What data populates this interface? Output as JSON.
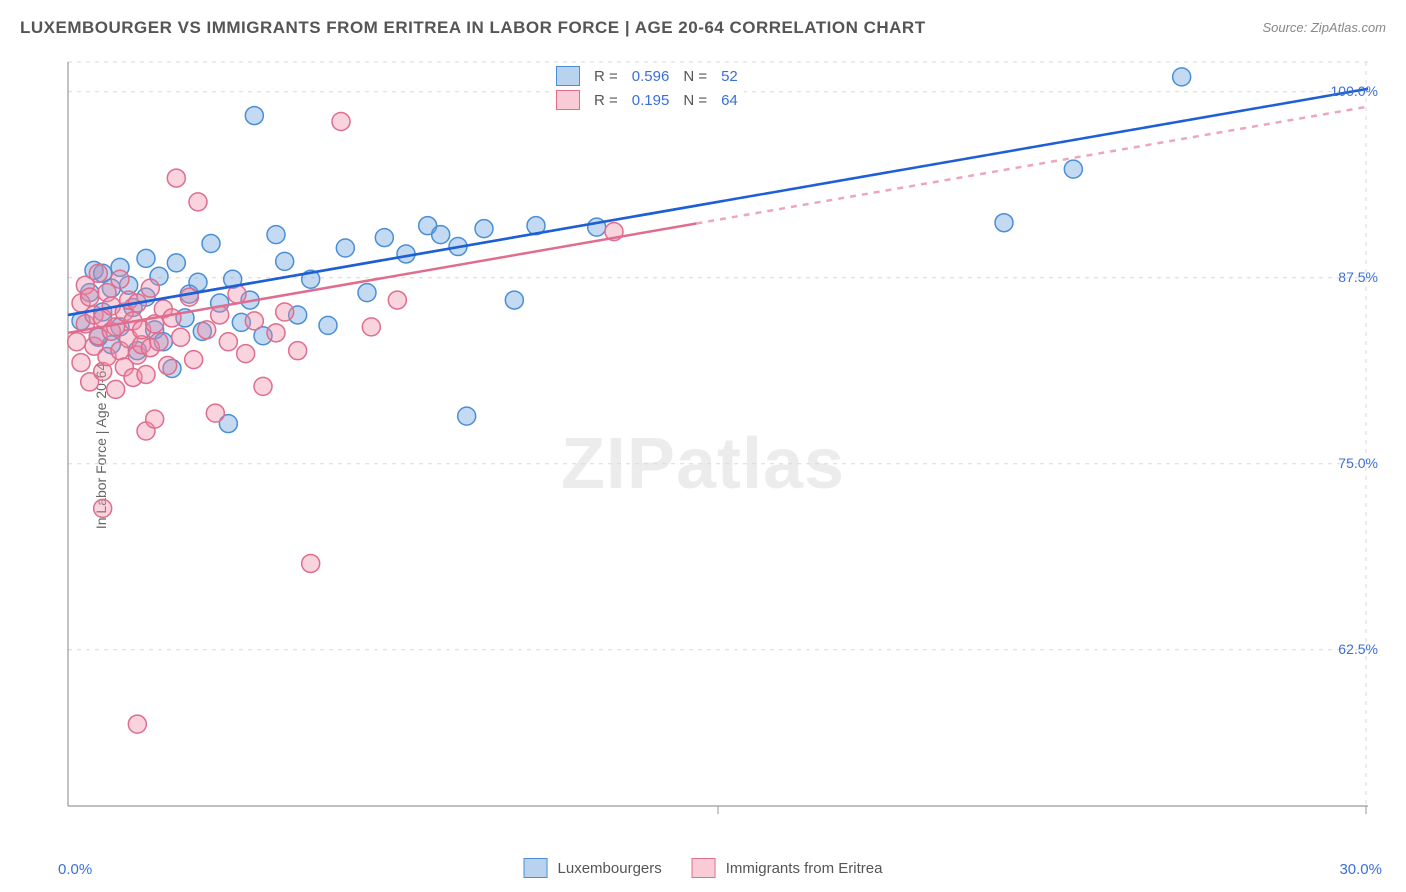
{
  "title": "LUXEMBOURGER VS IMMIGRANTS FROM ERITREA IN LABOR FORCE | AGE 20-64 CORRELATION CHART",
  "source": "Source: ZipAtlas.com",
  "ylabel": "In Labor Force | Age 20-64",
  "watermark": "ZIPatlas",
  "chart": {
    "type": "scatter+regression",
    "background_color": "#ffffff",
    "grid_color": "#d8d8d8",
    "axis_color": "#9a9a9a",
    "xlim": [
      0,
      30
    ],
    "ylim": [
      52,
      102
    ],
    "xticks": {
      "left_label": "0.0%",
      "right_label": "30.0%"
    },
    "yticks": [
      {
        "v": 100.0,
        "label": "100.0%"
      },
      {
        "v": 87.5,
        "label": "87.5%"
      },
      {
        "v": 75.0,
        "label": "75.0%"
      },
      {
        "v": 62.5,
        "label": "62.5%"
      }
    ],
    "marker_radius": 9,
    "marker_stroke_width": 1.5,
    "line_width": 2.5,
    "dash_pattern": "6 6",
    "series": [
      {
        "name": "Luxembourgers",
        "color_fill": "rgba(99,158,220,0.38)",
        "color_stroke": "#4a8fd6",
        "line_color": "#1f5fd6",
        "R": 0.596,
        "N": 52,
        "regression": {
          "x1": 0,
          "y1": 85.0,
          "x2_solid": 15,
          "x2": 30,
          "y2": 100.2
        },
        "points": [
          [
            0.3,
            84.6
          ],
          [
            0.5,
            86.5
          ],
          [
            0.6,
            88.0
          ],
          [
            0.7,
            83.5
          ],
          [
            0.8,
            87.8
          ],
          [
            0.8,
            85.2
          ],
          [
            1.0,
            83.0
          ],
          [
            1.0,
            86.8
          ],
          [
            1.2,
            88.2
          ],
          [
            1.2,
            84.2
          ],
          [
            1.4,
            87.0
          ],
          [
            1.5,
            85.5
          ],
          [
            1.6,
            82.6
          ],
          [
            1.8,
            86.2
          ],
          [
            1.8,
            88.8
          ],
          [
            2.0,
            84.0
          ],
          [
            2.1,
            87.6
          ],
          [
            2.2,
            83.2
          ],
          [
            2.4,
            81.4
          ],
          [
            2.5,
            88.5
          ],
          [
            2.7,
            84.8
          ],
          [
            2.8,
            86.4
          ],
          [
            3.0,
            87.2
          ],
          [
            3.1,
            83.9
          ],
          [
            3.3,
            89.8
          ],
          [
            3.5,
            85.8
          ],
          [
            3.7,
            77.7
          ],
          [
            3.8,
            87.4
          ],
          [
            4.0,
            84.5
          ],
          [
            4.2,
            86.0
          ],
          [
            4.3,
            98.4
          ],
          [
            4.5,
            83.6
          ],
          [
            4.8,
            90.4
          ],
          [
            5.0,
            88.6
          ],
          [
            5.3,
            85.0
          ],
          [
            5.6,
            87.4
          ],
          [
            6.0,
            84.3
          ],
          [
            6.4,
            89.5
          ],
          [
            6.9,
            86.5
          ],
          [
            7.3,
            90.2
          ],
          [
            7.8,
            89.1
          ],
          [
            8.3,
            91.0
          ],
          [
            8.6,
            90.4
          ],
          [
            9.0,
            89.6
          ],
          [
            9.2,
            78.2
          ],
          [
            9.6,
            90.8
          ],
          [
            10.3,
            86.0
          ],
          [
            10.8,
            91.0
          ],
          [
            12.2,
            90.9
          ],
          [
            21.6,
            91.2
          ],
          [
            23.2,
            94.8
          ],
          [
            25.7,
            101.0
          ]
        ]
      },
      {
        "name": "Immigrants from Eritrea",
        "color_fill": "rgba(240,140,165,0.38)",
        "color_stroke": "#e06d8e",
        "line_color": "#e06d8e",
        "R": 0.195,
        "N": 64,
        "regression": {
          "x1": 0,
          "y1": 83.8,
          "x2_solid": 14.5,
          "x2": 30,
          "y2": 99.0
        },
        "points": [
          [
            0.2,
            83.2
          ],
          [
            0.3,
            85.8
          ],
          [
            0.3,
            81.8
          ],
          [
            0.4,
            87.0
          ],
          [
            0.4,
            84.4
          ],
          [
            0.5,
            80.5
          ],
          [
            0.5,
            86.2
          ],
          [
            0.6,
            82.9
          ],
          [
            0.6,
            85.0
          ],
          [
            0.7,
            87.8
          ],
          [
            0.7,
            83.6
          ],
          [
            0.8,
            81.2
          ],
          [
            0.8,
            84.8
          ],
          [
            0.8,
            72.0
          ],
          [
            0.9,
            86.5
          ],
          [
            0.9,
            82.2
          ],
          [
            1.0,
            83.9
          ],
          [
            1.0,
            85.6
          ],
          [
            1.1,
            80.0
          ],
          [
            1.1,
            84.2
          ],
          [
            1.2,
            87.4
          ],
          [
            1.2,
            82.6
          ],
          [
            1.3,
            85.2
          ],
          [
            1.3,
            81.5
          ],
          [
            1.4,
            83.4
          ],
          [
            1.4,
            86.0
          ],
          [
            1.5,
            84.6
          ],
          [
            1.5,
            80.8
          ],
          [
            1.6,
            82.3
          ],
          [
            1.6,
            85.8
          ],
          [
            1.7,
            83.0
          ],
          [
            1.7,
            84.0
          ],
          [
            1.8,
            81.0
          ],
          [
            1.8,
            77.2
          ],
          [
            1.9,
            86.8
          ],
          [
            1.9,
            82.8
          ],
          [
            2.0,
            78.0
          ],
          [
            2.0,
            84.4
          ],
          [
            2.1,
            83.2
          ],
          [
            2.2,
            85.4
          ],
          [
            2.3,
            81.6
          ],
          [
            2.4,
            84.8
          ],
          [
            2.5,
            94.2
          ],
          [
            2.6,
            83.5
          ],
          [
            2.8,
            86.2
          ],
          [
            2.9,
            82.0
          ],
          [
            3.0,
            92.6
          ],
          [
            3.2,
            84.0
          ],
          [
            3.4,
            78.4
          ],
          [
            3.5,
            85.0
          ],
          [
            3.7,
            83.2
          ],
          [
            3.9,
            86.4
          ],
          [
            4.1,
            82.4
          ],
          [
            4.3,
            84.6
          ],
          [
            4.5,
            80.2
          ],
          [
            4.8,
            83.8
          ],
          [
            5.0,
            85.2
          ],
          [
            5.3,
            82.6
          ],
          [
            5.6,
            68.3
          ],
          [
            1.6,
            57.5
          ],
          [
            6.3,
            98.0
          ],
          [
            7.0,
            84.2
          ],
          [
            7.6,
            86.0
          ],
          [
            12.6,
            90.6
          ]
        ]
      }
    ]
  },
  "legendTop": {
    "Rlabel": "R =",
    "Nlabel": "N ="
  },
  "legendBottom": [
    "Luxembourgers",
    "Immigrants from Eritrea"
  ]
}
